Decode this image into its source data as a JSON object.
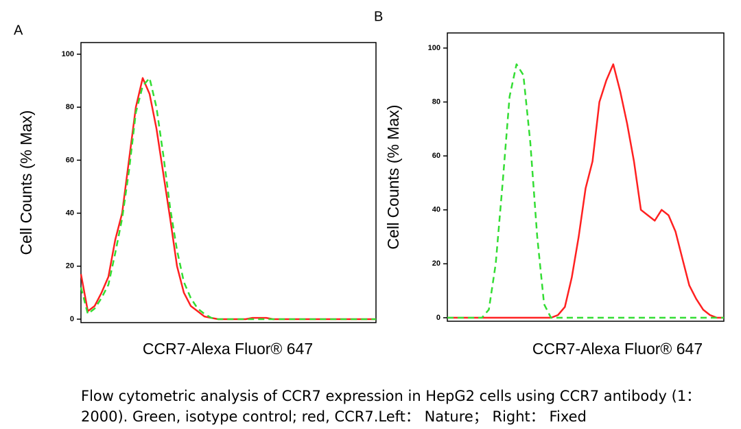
{
  "chart_data": [
    {
      "type": "line",
      "panel": "A",
      "y_label": "Cell Counts (% Max)",
      "x_label": "CCR7-Alexa Fluor® 647",
      "categories": [
        null,
        null,
        null,
        null,
        null,
        null,
        null,
        null,
        null,
        null,
        null,
        null,
        null,
        null,
        null,
        null,
        null,
        null,
        null,
        null,
        null,
        null,
        null,
        null,
        null,
        null,
        null,
        null,
        null,
        null,
        null,
        null,
        null,
        null,
        null,
        null,
        null,
        null,
        null,
        null,
        null,
        null,
        null,
        null
      ],
      "ylim": [
        -1.3,
        104.4
      ],
      "yticks": [
        0,
        20,
        40,
        60,
        80,
        100
      ],
      "series": [
        {
          "name": "CCR7",
          "color": "#ff2020",
          "style": "solid",
          "values": [
            17,
            3,
            5,
            10,
            16,
            30,
            40,
            60,
            80,
            91,
            85,
            72,
            55,
            38,
            20,
            10,
            5,
            3,
            1,
            0.5,
            0,
            0,
            0,
            0,
            0,
            0.5,
            0.5,
            0.5,
            0,
            0,
            0,
            0,
            0,
            0,
            0,
            0,
            0,
            0,
            0,
            0,
            0,
            0,
            0,
            0
          ]
        },
        {
          "name": "Isotype control",
          "color": "#33dd33",
          "style": "dashed",
          "values": [
            12,
            2,
            4,
            8,
            13,
            25,
            38,
            56,
            78,
            88,
            91,
            80,
            62,
            42,
            26,
            14,
            8,
            4,
            2,
            0.5,
            0,
            0,
            0,
            0,
            0,
            0,
            0,
            0,
            0,
            0,
            0,
            0,
            0,
            0,
            0,
            0,
            0,
            0,
            0,
            0,
            0,
            0,
            0,
            0
          ]
        }
      ]
    },
    {
      "type": "line",
      "panel": "B",
      "y_label": "Cell Counts (% Max)",
      "x_label": "CCR7-Alexa Fluor® 647",
      "categories": [
        null,
        null,
        null,
        null,
        null,
        null,
        null,
        null,
        null,
        null,
        null,
        null,
        null,
        null,
        null,
        null,
        null,
        null,
        null,
        null,
        null,
        null,
        null,
        null,
        null,
        null,
        null,
        null,
        null,
        null,
        null,
        null,
        null,
        null,
        null,
        null,
        null,
        null,
        null,
        null,
        null
      ],
      "ylim": [
        -1.3,
        105.6
      ],
      "yticks": [
        0,
        20,
        40,
        60,
        80,
        100
      ],
      "series": [
        {
          "name": "CCR7",
          "color": "#ff2020",
          "style": "solid",
          "values": [
            0,
            0,
            0,
            0,
            0,
            0,
            0,
            0,
            0,
            0,
            0,
            0,
            0,
            0,
            0,
            0,
            1,
            4,
            15,
            30,
            48,
            58,
            80,
            88,
            94,
            84,
            72,
            58,
            40,
            38,
            36,
            40,
            38,
            32,
            22,
            12,
            7,
            3,
            1,
            0,
            0
          ]
        },
        {
          "name": "Isotype control",
          "color": "#33dd33",
          "style": "dashed",
          "values": [
            0,
            0,
            0,
            0,
            0,
            0,
            3,
            20,
            50,
            82,
            94,
            90,
            65,
            30,
            5,
            0,
            0,
            0,
            0,
            0,
            0,
            0,
            0,
            0,
            0,
            0,
            0,
            0,
            0,
            0,
            0,
            0,
            0,
            0,
            0,
            0,
            0,
            0,
            0,
            0,
            0
          ]
        }
      ]
    }
  ],
  "caption": "Flow cytometric analysis of CCR7 expression in HepG2 cells using CCR7 antibody (1：2000). Green, isotype control; red, CCR7.Left： Nature； Right： Fixed"
}
